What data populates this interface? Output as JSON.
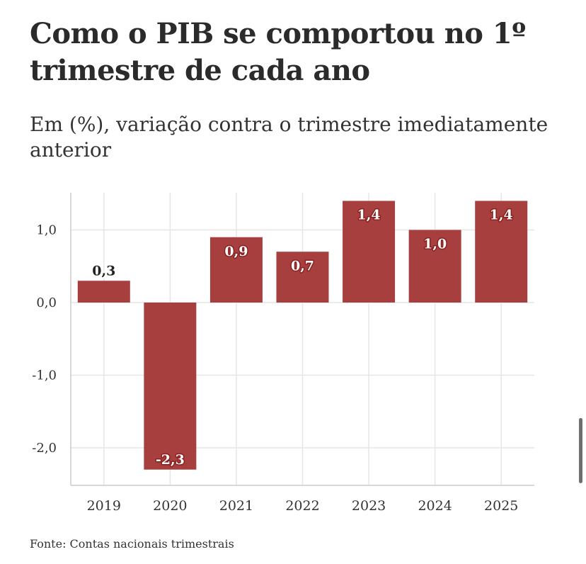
{
  "title": "Como o PIB se comportou no 1º trimestre de cada ano",
  "subtitle": "Em (%), variação contra o trimestre imediatamente anterior",
  "source": "Fonte: Contas nacionais trimestrais",
  "colors": {
    "bar": "#a83f3f",
    "label_outline": "#8a1f1f",
    "grid": "#e6e6e6",
    "axis": "#cccccc",
    "text": "#333333"
  },
  "chart_data": {
    "type": "bar",
    "categories": [
      "2019",
      "2020",
      "2021",
      "2022",
      "2023",
      "2024",
      "2025"
    ],
    "values": [
      0.3,
      -2.3,
      0.9,
      0.7,
      1.4,
      1.0,
      1.4
    ],
    "value_labels": [
      "0,3",
      "-2,3",
      "0,9",
      "0,7",
      "1,4",
      "1,0",
      "1,4"
    ],
    "y_ticks": [
      1.0,
      0.0,
      -1.0,
      -2.0
    ],
    "y_tick_labels": [
      "1,0",
      "0,0",
      "-1,0",
      "-2,0"
    ],
    "ylim": [
      -2.5,
      1.4
    ],
    "grid": true,
    "legend": "none"
  }
}
